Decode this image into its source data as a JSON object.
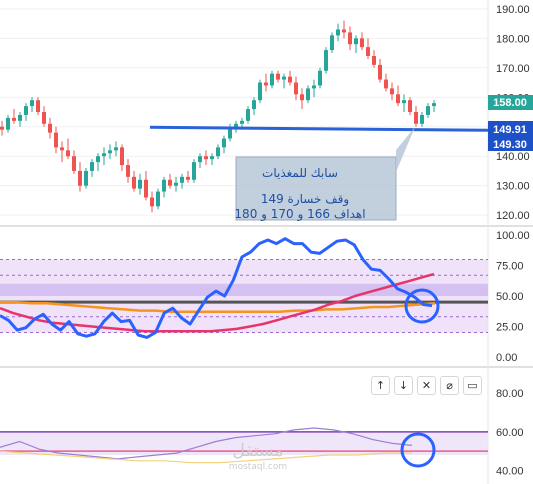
{
  "chart_data": [
    {
      "type": "candlestick",
      "panel": "price",
      "y_ticks": [
        "190.00",
        "180.00",
        "170.00",
        "160.00",
        "150.00",
        "140.00",
        "130.00",
        "120.00"
      ],
      "y_tick_values": [
        190,
        180,
        170,
        160,
        150,
        140,
        130,
        120
      ],
      "ylim": [
        117,
        193
      ],
      "last_price": "158.00",
      "support_price": "149.91",
      "support_price_2": "149.30",
      "support_level": 149.3,
      "colors": {
        "up": "#26a69a",
        "down": "#ef5350",
        "support": "#2a62d8",
        "last_price_tag": "#26a69a",
        "support_tag": "#1e50c8"
      },
      "ohlc": [
        [
          150,
          152,
          147,
          149
        ],
        [
          149,
          154,
          148,
          153
        ],
        [
          153,
          156,
          151,
          152
        ],
        [
          152,
          155,
          150,
          154
        ],
        [
          154,
          158,
          152,
          157
        ],
        [
          157,
          160,
          155,
          159
        ],
        [
          159,
          160,
          154,
          155
        ],
        [
          155,
          157,
          150,
          151
        ],
        [
          151,
          153,
          146,
          148
        ],
        [
          148,
          150,
          141,
          143
        ],
        [
          143,
          145,
          138,
          142
        ],
        [
          142,
          146,
          139,
          140
        ],
        [
          140,
          142,
          134,
          135
        ],
        [
          135,
          138,
          128,
          130
        ],
        [
          130,
          136,
          129,
          135
        ],
        [
          135,
          139,
          133,
          138
        ],
        [
          138,
          141,
          135,
          140
        ],
        [
          140,
          143,
          137,
          141
        ],
        [
          141,
          144,
          139,
          142
        ],
        [
          142,
          145,
          140,
          143
        ],
        [
          143,
          144,
          135,
          137
        ],
        [
          137,
          139,
          131,
          133
        ],
        [
          133,
          135,
          128,
          129
        ],
        [
          129,
          134,
          127,
          132
        ],
        [
          132,
          135,
          125,
          126
        ],
        [
          126,
          128,
          121,
          123
        ],
        [
          123,
          129,
          122,
          128
        ],
        [
          128,
          133,
          126,
          132
        ],
        [
          132,
          134,
          129,
          130
        ],
        [
          130,
          133,
          128,
          131
        ],
        [
          131,
          134,
          129,
          133
        ],
        [
          133,
          135,
          131,
          132
        ],
        [
          132,
          139,
          131,
          138
        ],
        [
          138,
          141,
          136,
          140
        ],
        [
          140,
          142,
          137,
          139
        ],
        [
          139,
          141,
          137,
          140
        ],
        [
          140,
          144,
          139,
          143
        ],
        [
          143,
          147,
          141,
          146
        ],
        [
          146,
          151,
          145,
          150
        ],
        [
          150,
          152,
          148,
          151
        ],
        [
          151,
          153,
          149,
          152
        ],
        [
          152,
          157,
          151,
          156
        ],
        [
          156,
          160,
          154,
          159
        ],
        [
          159,
          166,
          158,
          165
        ],
        [
          165,
          168,
          162,
          164
        ],
        [
          164,
          169,
          163,
          168
        ],
        [
          168,
          169,
          165,
          166
        ],
        [
          166,
          168,
          163,
          167
        ],
        [
          167,
          169,
          164,
          165
        ],
        [
          165,
          167,
          159,
          161
        ],
        [
          161,
          163,
          156,
          159
        ],
        [
          159,
          164,
          158,
          163
        ],
        [
          163,
          166,
          160,
          164
        ],
        [
          164,
          170,
          163,
          169
        ],
        [
          169,
          177,
          168,
          176
        ],
        [
          176,
          182,
          175,
          181
        ],
        [
          181,
          185,
          179,
          183
        ],
        [
          183,
          186,
          180,
          182
        ],
        [
          182,
          184,
          176,
          178
        ],
        [
          178,
          181,
          175,
          180
        ],
        [
          180,
          182,
          176,
          177
        ],
        [
          177,
          180,
          173,
          174
        ],
        [
          174,
          176,
          170,
          171
        ],
        [
          171,
          173,
          165,
          166
        ],
        [
          166,
          168,
          162,
          163
        ],
        [
          163,
          165,
          159,
          161
        ],
        [
          161,
          164,
          157,
          158
        ],
        [
          158,
          161,
          155,
          159
        ],
        [
          159,
          160,
          154,
          155
        ],
        [
          155,
          157,
          150,
          151
        ],
        [
          151,
          155,
          150,
          154
        ],
        [
          154,
          158,
          153,
          157
        ],
        [
          157,
          159,
          155,
          158
        ]
      ]
    },
    {
      "type": "line",
      "panel": "rsi",
      "y_ticks": [
        "100.00",
        "75.00",
        "50.00",
        "25.00",
        "0.00"
      ],
      "y_tick_values": [
        100,
        75,
        50,
        25,
        0
      ],
      "ylim": [
        -5,
        105
      ],
      "band": [
        20,
        80
      ],
      "inner_band": [
        50,
        60
      ],
      "dashed_levels": [
        67,
        33
      ],
      "series": [
        {
          "color": "#2962ff",
          "values": [
            34,
            30,
            22,
            24,
            31,
            35,
            27,
            22,
            29,
            19,
            17,
            19,
            29,
            36,
            29,
            30,
            18,
            16,
            20,
            36,
            40,
            32,
            27,
            38,
            49,
            54,
            50,
            63,
            82,
            86,
            93,
            96,
            93,
            97,
            93,
            93,
            86,
            85,
            90,
            95,
            96,
            92,
            80,
            72,
            71,
            64,
            56,
            53,
            49,
            43,
            42
          ]
        },
        {
          "color": "#e8336b",
          "values": [
            40,
            36,
            33,
            30,
            28,
            27,
            26,
            25,
            24,
            23,
            22,
            21,
            21,
            21,
            21,
            21,
            21,
            22,
            23,
            25,
            27,
            30,
            33,
            36,
            39,
            43,
            46,
            50,
            53,
            56,
            59,
            62,
            65,
            68
          ]
        },
        {
          "color": "#f7941d",
          "values": [
            45,
            45,
            44,
            44,
            43,
            42,
            41,
            40,
            39,
            38,
            38,
            37,
            37,
            37,
            37,
            37,
            37,
            37,
            37,
            38,
            38,
            39,
            39,
            40,
            41,
            41,
            42,
            43,
            44
          ]
        }
      ],
      "level_line": 45
    },
    {
      "type": "line",
      "panel": "lower",
      "y_ticks": [
        "80.00",
        "60.00",
        "40.00"
      ],
      "y_tick_values": [
        80,
        60,
        40
      ],
      "ylim": [
        33,
        92
      ],
      "band": [
        48,
        60
      ],
      "series": [
        {
          "color": "#9b7fd4",
          "values": [
            52,
            55,
            51,
            49,
            48,
            47,
            46,
            47,
            48,
            49,
            52,
            55,
            57,
            58,
            59,
            61,
            62,
            61,
            59,
            56,
            54,
            53
          ]
        },
        {
          "color": "#f2d27a",
          "values": [
            50,
            49,
            48,
            47,
            46,
            45,
            45,
            44,
            44,
            45,
            46,
            47,
            48,
            48,
            49,
            49
          ]
        }
      ],
      "level_lines": [
        60,
        50
      ]
    }
  ],
  "annotation": {
    "line1": "سابك للمغذيات",
    "line2": "وقف خسارة 149",
    "line3": "اهداف  166 و 170 و 180"
  },
  "toolbar": {
    "up": "↑",
    "down": "↓",
    "close": "✕",
    "hide": "⌀",
    "maximize": "▭"
  },
  "watermark": {
    "text_ar": "مستقل",
    "text_en": "mostaql.com"
  }
}
